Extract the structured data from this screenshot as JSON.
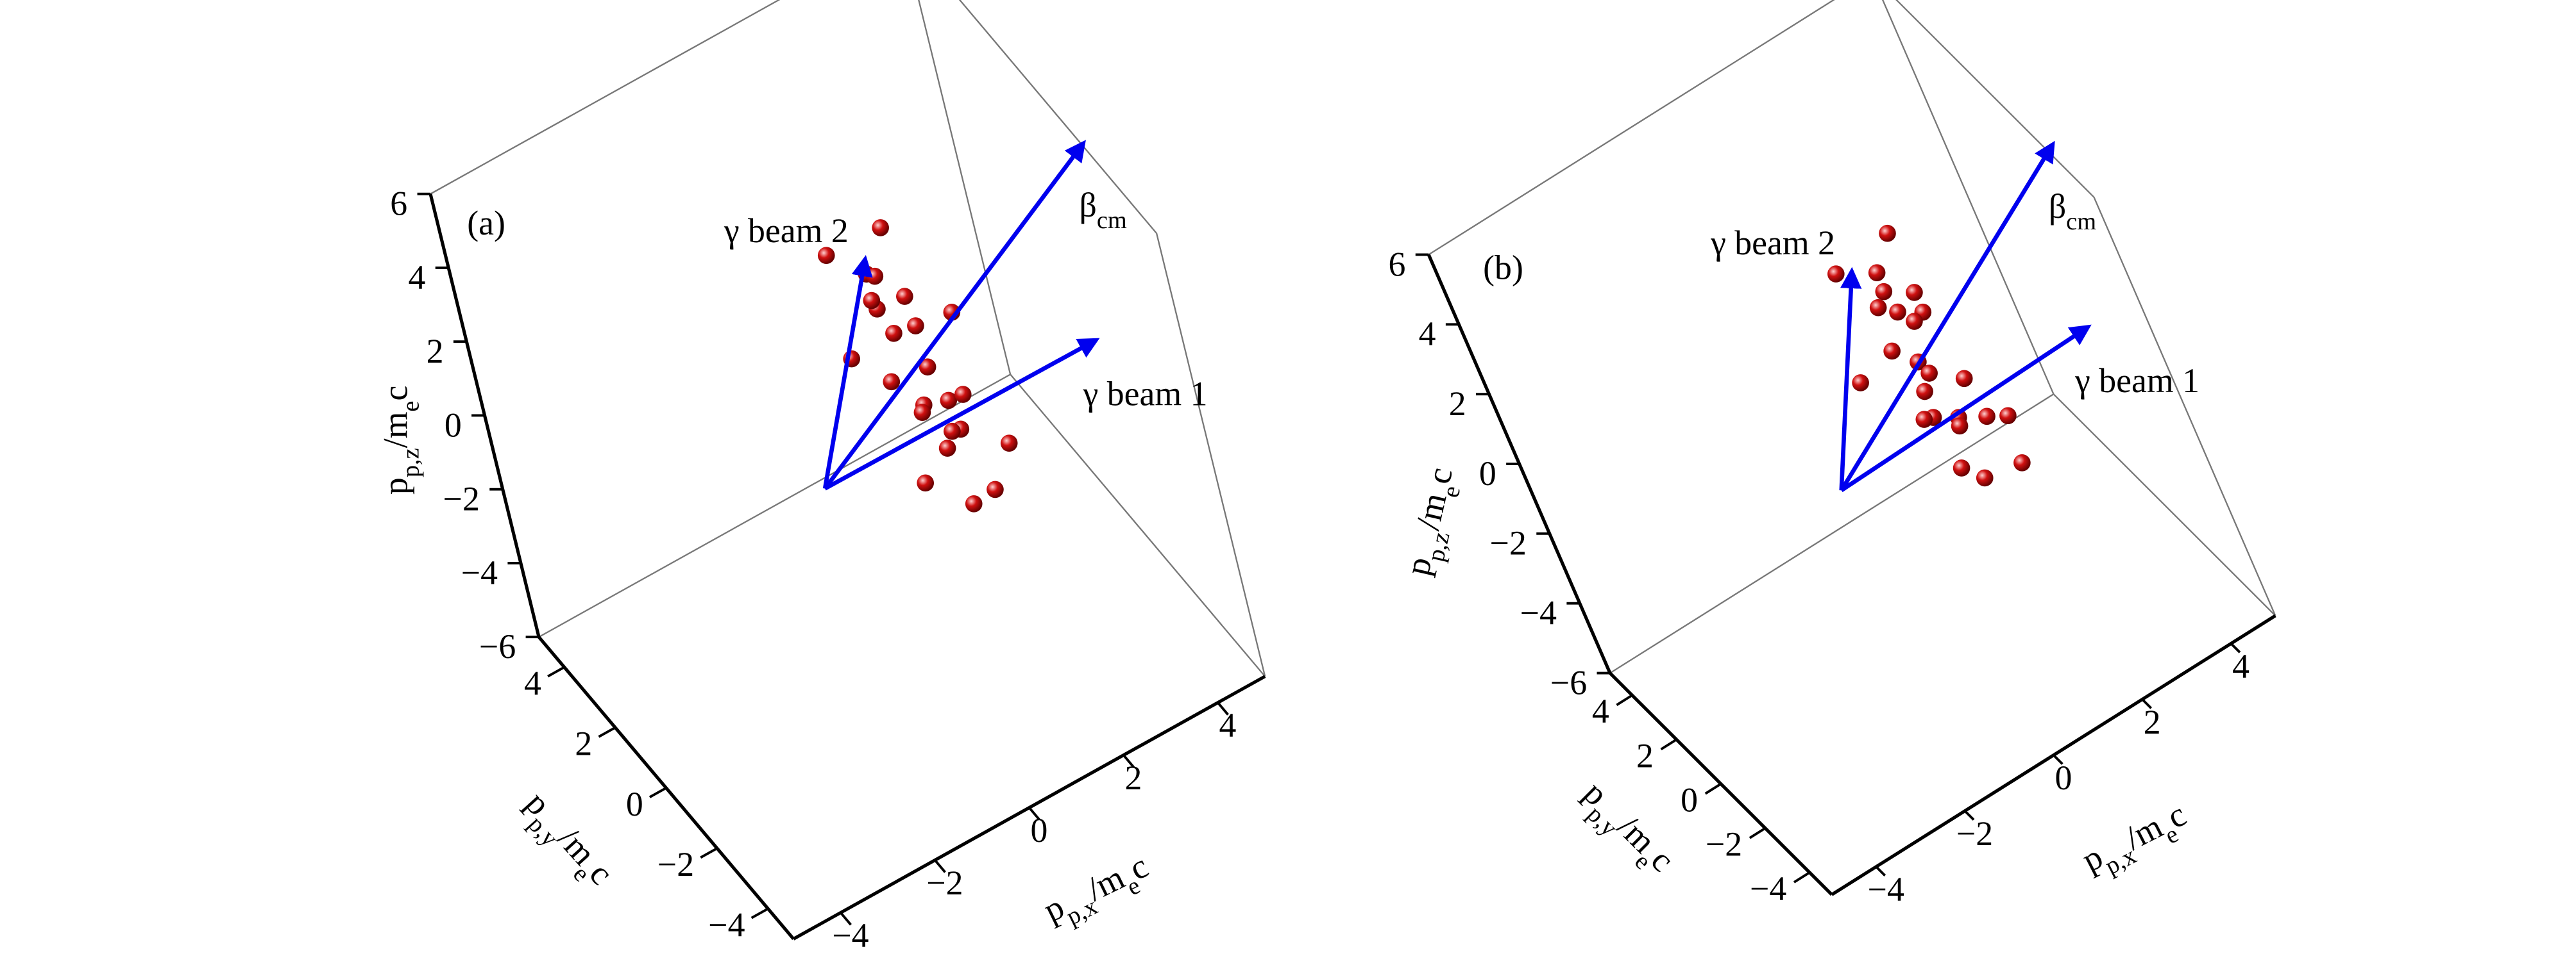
{
  "chart_data": [
    {
      "type": "scatter3d",
      "panel_label": "(a)",
      "xlabel": [
        "p",
        "p,x",
        "/m",
        "e",
        "c"
      ],
      "ylabel": [
        "p",
        "p,y",
        "/m",
        "e",
        "c"
      ],
      "zlabel": [
        "p",
        "p,z",
        "/m",
        "e",
        "c"
      ],
      "xlim": [
        -5,
        5
      ],
      "ylim": [
        -5,
        5
      ],
      "zlim": [
        -6,
        6
      ],
      "xticks": [
        {
          "value": -4,
          "label": "−4"
        },
        {
          "value": -2,
          "label": "−2"
        },
        0,
        2,
        4
      ],
      "yticks": [
        {
          "value": -4,
          "label": "−4"
        },
        {
          "value": -2,
          "label": "−2"
        },
        0,
        2,
        4
      ],
      "zticks": [
        {
          "value": -6,
          "label": "−6"
        },
        {
          "value": -4,
          "label": "−4"
        },
        {
          "value": -2,
          "label": "−2"
        },
        0,
        2,
        4,
        6
      ],
      "points": {
        "color": "#d01010",
        "x": [
          2.2,
          1.4,
          2.2,
          1.4,
          2.2,
          1.4,
          2.2,
          1.4,
          2.2,
          1.4,
          2.2,
          1.4,
          1.8,
          1.6,
          2.0,
          1.8,
          1.6,
          2.0,
          1.8,
          1.6,
          2.0,
          1.8,
          1.6,
          2.0
        ],
        "y": [
          3.3,
          2.9,
          1.9,
          0.5,
          -0.9,
          -1.9,
          -2.3,
          -1.9,
          -0.9,
          0.5,
          1.9,
          2.9,
          2.0,
          1.6,
          0.9,
          0.1,
          -0.6,
          -1.0,
          -1.0,
          -0.6,
          0.1,
          0.9,
          1.6,
          2.0
        ],
        "z": [
          0.1,
          1.5,
          2.5,
          2.9,
          2.5,
          1.5,
          0.1,
          -1.3,
          -2.3,
          -2.7,
          -2.3,
          -1.3,
          0.5,
          1.2,
          1.6,
          1.6,
          1.2,
          0.5,
          -0.3,
          -1.0,
          -1.4,
          -1.4,
          -1.0,
          -0.3
        ]
      },
      "vectors": [
        {
          "label": [
            "γ beam 1"
          ],
          "color": "#0000ee",
          "start": [
            -0.5,
            0.5,
            -1.5
          ],
          "end": [
            4.9,
            -0.5,
            -0.5
          ]
        },
        {
          "label": [
            "γ beam 2"
          ],
          "color": "#0000ee",
          "start": [
            -0.5,
            0.5,
            -1.5
          ],
          "end": [
            1.5,
            1.1,
            2.8
          ]
        },
        {
          "label": [
            "β",
            "cm"
          ],
          "color": "#0000ee",
          "start": [
            -0.5,
            0.5,
            -1.5
          ],
          "end": [
            5.9,
            0.5,
            3.3
          ]
        }
      ]
    },
    {
      "type": "scatter3d",
      "panel_label": "(b)",
      "xlabel": [
        "p",
        "p,x",
        "/m",
        "e",
        "c"
      ],
      "ylabel": [
        "p",
        "p,y",
        "/m",
        "e",
        "c"
      ],
      "zlabel": [
        "p",
        "p,z",
        "/m",
        "e",
        "c"
      ],
      "xlim": [
        -5,
        5
      ],
      "ylim": [
        -5,
        5
      ],
      "zlim": [
        -6,
        6
      ],
      "xticks": [
        {
          "value": -4,
          "label": "−4"
        },
        {
          "value": -2,
          "label": "−2"
        },
        0,
        2,
        4
      ],
      "yticks": [
        {
          "value": -4,
          "label": "−4"
        },
        {
          "value": -2,
          "label": "−2"
        },
        0,
        2,
        4
      ],
      "zticks": [
        {
          "value": -6,
          "label": "−6"
        },
        {
          "value": -4,
          "label": "−4"
        },
        {
          "value": -2,
          "label": "−2"
        },
        0,
        2,
        4,
        6
      ],
      "points": {
        "color": "#d01010",
        "x": [
          2.4,
          1.6,
          2.6,
          1.8,
          2.0,
          1.2,
          2.4,
          1.6,
          2.6,
          1.8,
          2.0,
          1.2,
          2.2,
          1.8,
          2.4,
          2.0,
          1.6,
          2.2,
          1.8,
          2.4,
          2.0,
          1.6,
          2.2,
          1.8
        ],
        "y": [
          3.3,
          2.9,
          1.9,
          0.5,
          -0.9,
          -1.9,
          -2.3,
          -1.9,
          -0.9,
          0.5,
          1.9,
          2.9,
          2.0,
          1.6,
          0.9,
          0.1,
          -0.6,
          -1.0,
          -1.0,
          -0.6,
          0.1,
          0.9,
          1.6,
          2.0
        ],
        "z": [
          0.1,
          1.5,
          2.5,
          2.9,
          2.5,
          1.5,
          0.1,
          -1.3,
          -2.3,
          -2.7,
          -2.3,
          -1.3,
          0.5,
          1.2,
          1.6,
          1.6,
          1.2,
          0.5,
          -0.3,
          -1.0,
          -1.4,
          -1.4,
          -1.0,
          -0.3
        ]
      },
      "vectors": [
        {
          "label": [
            "γ beam 1"
          ],
          "color": "#0000ee",
          "start": [
            -0.5,
            0.5,
            -1.5
          ],
          "end": [
            4.9,
            -0.5,
            -0.5
          ]
        },
        {
          "label": [
            "γ beam 2"
          ],
          "color": "#0000ee",
          "start": [
            -0.5,
            0.5,
            -1.5
          ],
          "end": [
            1.5,
            1.1,
            2.8
          ]
        },
        {
          "label": [
            "β",
            "cm"
          ],
          "color": "#0000ee",
          "start": [
            -0.5,
            0.5,
            -1.5
          ],
          "end": [
            5.9,
            0.5,
            3.3
          ]
        }
      ]
    }
  ]
}
